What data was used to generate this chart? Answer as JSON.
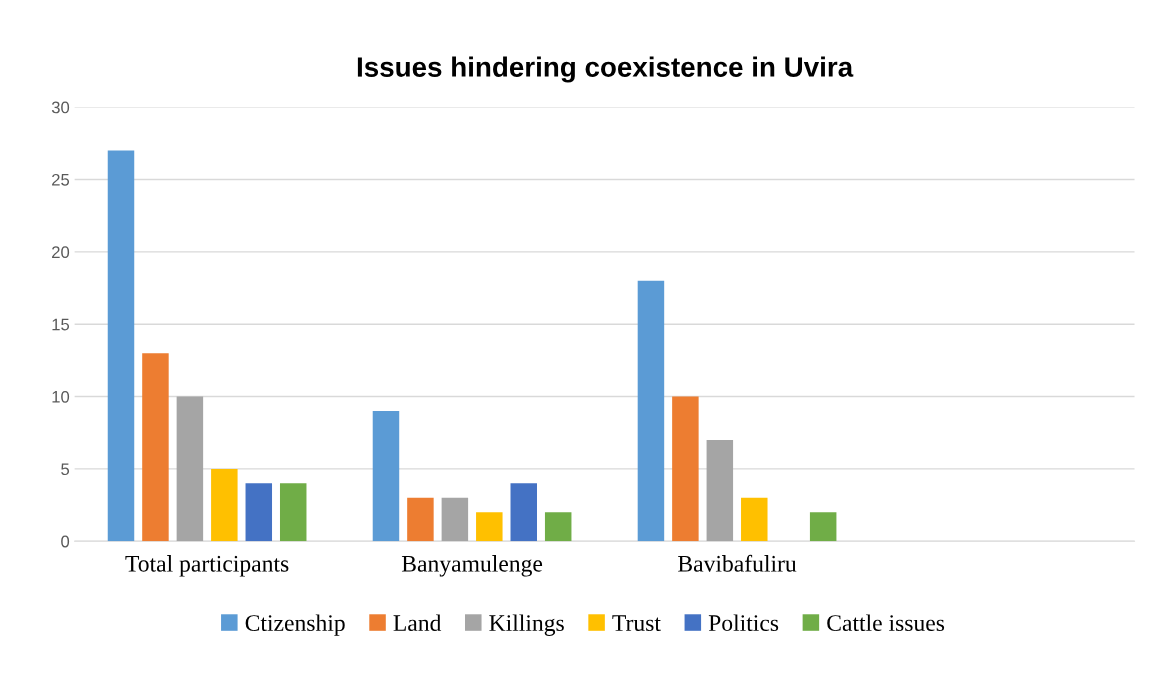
{
  "chart_data": {
    "type": "bar",
    "title": "Issues hindering coexistence in Uvira",
    "categories": [
      "Total participants",
      "Banyamulenge",
      "Bavibafuliru",
      null
    ],
    "series": [
      {
        "name": "Ctizenship",
        "color": "#5b9bd5",
        "values": [
          27,
          9,
          18,
          null
        ]
      },
      {
        "name": "Land",
        "color": "#ed7d31",
        "values": [
          13,
          3,
          10,
          null
        ]
      },
      {
        "name": "Killings",
        "color": "#a5a5a5",
        "values": [
          10,
          3,
          7,
          null
        ]
      },
      {
        "name": "Trust",
        "color": "#ffc000",
        "values": [
          5,
          2,
          3,
          null
        ]
      },
      {
        "name": "Politics",
        "color": "#4472c4",
        "values": [
          4,
          4,
          null,
          null
        ]
      },
      {
        "name": "Cattle issues",
        "color": "#70ad47",
        "values": [
          4,
          2,
          2,
          null
        ]
      }
    ],
    "ylim": [
      0,
      30
    ],
    "yticks": [
      0,
      5,
      10,
      15,
      20,
      25,
      30
    ],
    "grid": "y",
    "legend": "bottom"
  }
}
